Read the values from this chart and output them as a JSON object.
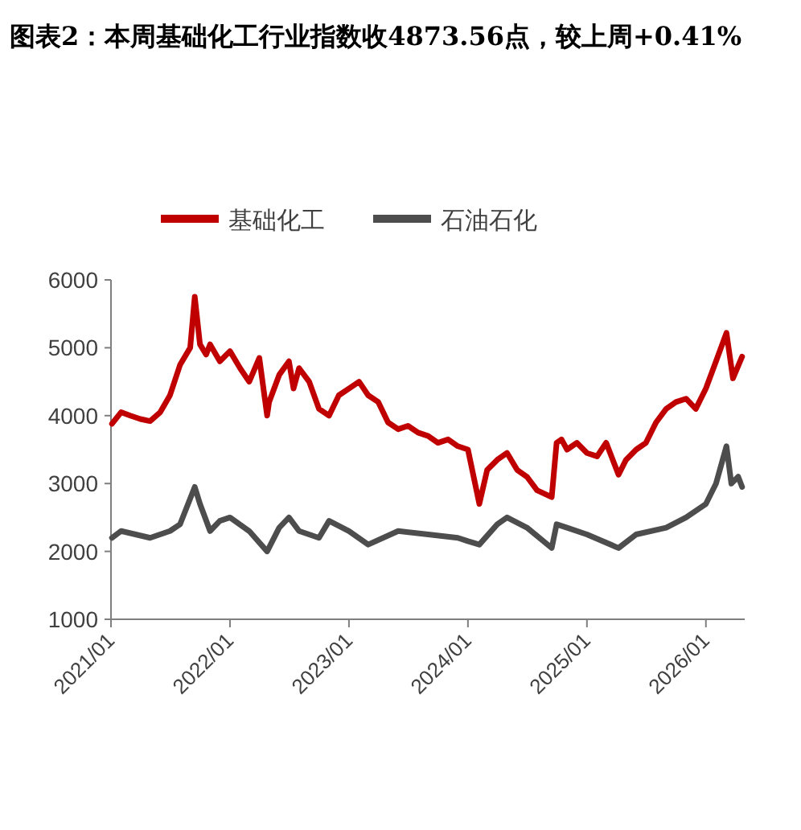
{
  "chart_data": {
    "type": "line",
    "title": "图表2：本周基础化工行业指数收4873.56点，较上周+0.41%",
    "legend": "top",
    "grid": false,
    "marker": "none",
    "line_style": "solid",
    "xlim": [
      "2021-01-01",
      "2026-04-30"
    ],
    "xticks": [
      {
        "value": "2021-01-01",
        "label": "2021/01"
      },
      {
        "value": "2022-01-01",
        "label": "2022/01"
      },
      {
        "value": "2023-01-01",
        "label": "2023/01"
      },
      {
        "value": "2024-01-01",
        "label": "2024/01"
      },
      {
        "value": "2025-01-01",
        "label": "2025/01"
      },
      {
        "value": "2026-01-01",
        "label": "2026/01"
      }
    ],
    "ylim": [
      1000,
      6000
    ],
    "yticks": [
      1000,
      2000,
      3000,
      4000,
      5000,
      6000
    ],
    "series": [
      {
        "name": "基础化工",
        "color": "#c00000",
        "x": [
          "2021-01-04",
          "2021-02-01",
          "2021-03-01",
          "2021-04-01",
          "2021-05-01",
          "2021-06-01",
          "2021-07-01",
          "2021-08-01",
          "2021-09-01",
          "2021-09-15",
          "2021-10-01",
          "2021-10-20",
          "2021-11-01",
          "2021-12-01",
          "2022-01-01",
          "2022-02-01",
          "2022-03-01",
          "2022-04-01",
          "2022-04-25",
          "2022-05-01",
          "2022-06-01",
          "2022-07-01",
          "2022-07-15",
          "2022-08-01",
          "2022-09-01",
          "2022-10-01",
          "2022-11-01",
          "2022-12-01",
          "2023-01-01",
          "2023-02-01",
          "2023-03-01",
          "2023-04-01",
          "2023-05-01",
          "2023-06-01",
          "2023-07-01",
          "2023-08-01",
          "2023-09-01",
          "2023-10-01",
          "2023-11-01",
          "2023-12-01",
          "2024-01-01",
          "2024-02-05",
          "2024-03-01",
          "2024-04-01",
          "2024-05-01",
          "2024-06-01",
          "2024-07-01",
          "2024-08-01",
          "2024-09-15",
          "2024-09-30",
          "2024-10-15",
          "2024-11-01",
          "2024-12-01",
          "2025-01-01",
          "2025-02-01",
          "2025-03-01",
          "2025-04-08",
          "2025-05-01",
          "2025-06-01",
          "2025-07-01",
          "2025-08-01",
          "2025-09-01",
          "2025-10-01",
          "2025-11-01",
          "2025-12-01",
          "2026-01-01",
          "2026-02-01",
          "2026-03-05",
          "2026-03-25",
          "2026-04-22"
        ],
        "values": [
          3880,
          4050,
          4000,
          3950,
          3920,
          4050,
          4300,
          4750,
          5000,
          5750,
          5050,
          4900,
          5050,
          4800,
          4950,
          4700,
          4500,
          4850,
          4000,
          4200,
          4600,
          4800,
          4400,
          4700,
          4500,
          4100,
          4000,
          4300,
          4400,
          4500,
          4300,
          4200,
          3900,
          3800,
          3850,
          3750,
          3700,
          3600,
          3650,
          3550,
          3500,
          2700,
          3200,
          3350,
          3450,
          3200,
          3100,
          2900,
          2800,
          3600,
          3650,
          3500,
          3600,
          3450,
          3400,
          3600,
          3130,
          3350,
          3500,
          3600,
          3900,
          4100,
          4200,
          4250,
          4100,
          4400,
          4800,
          5220,
          4550,
          4870
        ]
      },
      {
        "name": "石油石化",
        "color": "#4d4d4d",
        "x": [
          "2021-01-04",
          "2021-02-01",
          "2021-05-01",
          "2021-07-01",
          "2021-08-01",
          "2021-09-15",
          "2021-10-01",
          "2021-11-01",
          "2021-12-01",
          "2022-01-01",
          "2022-03-01",
          "2022-04-25",
          "2022-06-01",
          "2022-07-01",
          "2022-08-01",
          "2022-10-01",
          "2022-11-01",
          "2023-01-01",
          "2023-03-01",
          "2023-06-01",
          "2023-09-01",
          "2023-12-01",
          "2024-01-01",
          "2024-02-05",
          "2024-04-01",
          "2024-05-01",
          "2024-07-01",
          "2024-09-15",
          "2024-09-30",
          "2024-11-01",
          "2025-01-01",
          "2025-04-08",
          "2025-06-01",
          "2025-09-01",
          "2025-11-01",
          "2026-01-01",
          "2026-02-01",
          "2026-03-05",
          "2026-03-20",
          "2026-04-10",
          "2026-04-22"
        ],
        "values": [
          2200,
          2300,
          2200,
          2300,
          2400,
          2950,
          2700,
          2300,
          2450,
          2500,
          2300,
          2000,
          2350,
          2500,
          2300,
          2200,
          2450,
          2300,
          2100,
          2300,
          2250,
          2200,
          2150,
          2100,
          2400,
          2500,
          2350,
          2050,
          2400,
          2350,
          2250,
          2050,
          2250,
          2350,
          2500,
          2700,
          3000,
          3550,
          3000,
          3100,
          2950
        ]
      }
    ]
  }
}
